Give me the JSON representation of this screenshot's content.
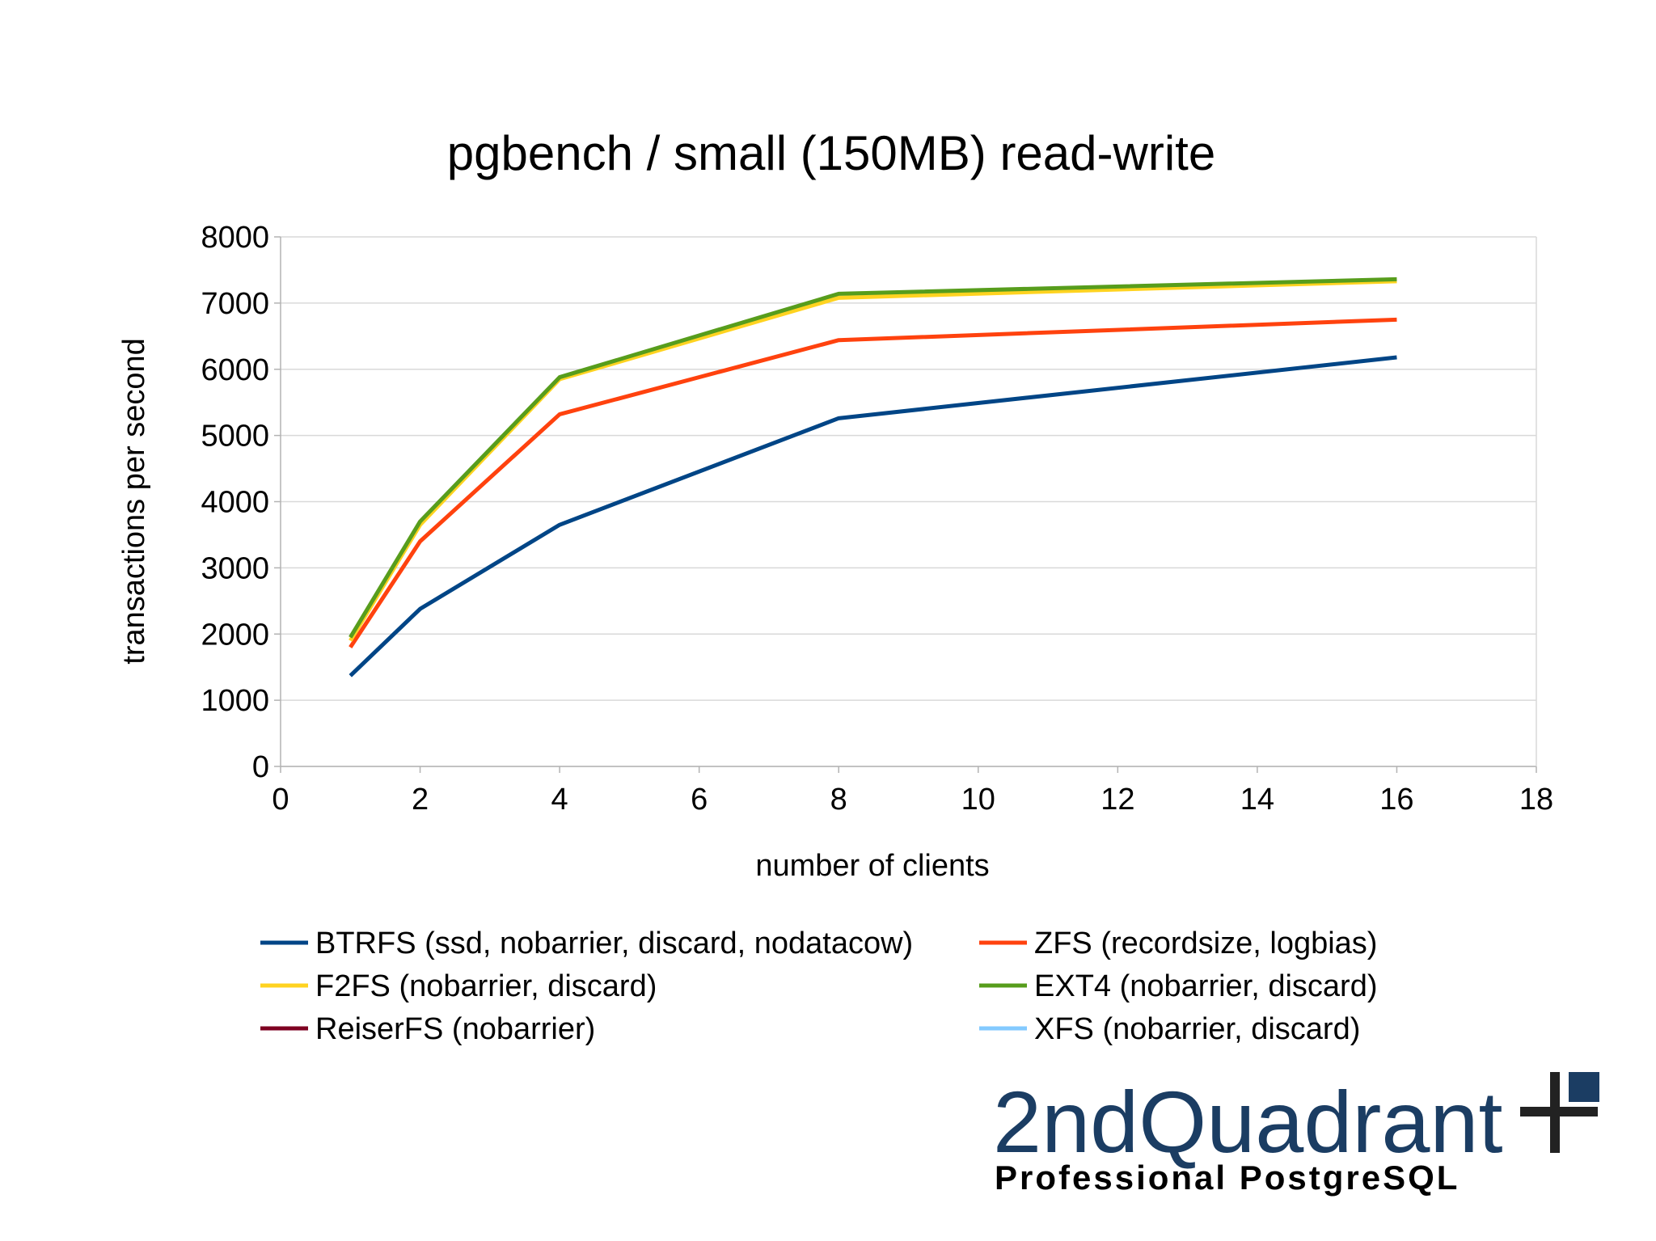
{
  "chart_data": {
    "type": "line",
    "title": "pgbench / small (150MB) read-write",
    "xlabel": "number of clients",
    "ylabel": "transactions per second",
    "x": [
      1,
      2,
      4,
      8,
      16
    ],
    "xlim": [
      0,
      18
    ],
    "xticks": [
      0,
      2,
      4,
      6,
      8,
      10,
      12,
      14,
      16,
      18
    ],
    "ylim": [
      0,
      8000
    ],
    "yticks": [
      0,
      1000,
      2000,
      3000,
      4000,
      5000,
      6000,
      7000,
      8000
    ],
    "grid": true,
    "legend": "bottom",
    "series": [
      {
        "name": "BTRFS (ssd, nobarrier, discard, nodatacow)",
        "color": "#004586",
        "values": [
          1370,
          2380,
          3650,
          5260,
          6180
        ]
      },
      {
        "name": "ZFS (recordsize, logbias)",
        "color": "#ff420e",
        "values": [
          1800,
          3400,
          5320,
          6440,
          6750
        ]
      },
      {
        "name": "F2FS (nobarrier, discard)",
        "color": "#ffd320",
        "values": [
          1900,
          3650,
          5850,
          7080,
          7330
        ]
      },
      {
        "name": "EXT4 (nobarrier, discard)",
        "color": "#579d1c",
        "values": [
          1950,
          3700,
          5880,
          7140,
          7360
        ]
      },
      {
        "name": "ReiserFS (nobarrier)",
        "color": "#7e0021",
        "values": [
          null,
          null,
          null,
          null,
          null
        ]
      },
      {
        "name": "XFS (nobarrier, discard)",
        "color": "#83caff",
        "values": [
          null,
          null,
          null,
          null,
          null
        ]
      }
    ]
  },
  "logo": {
    "name": "2ndQuadrant",
    "tagline": "Professional PostgreSQL"
  }
}
